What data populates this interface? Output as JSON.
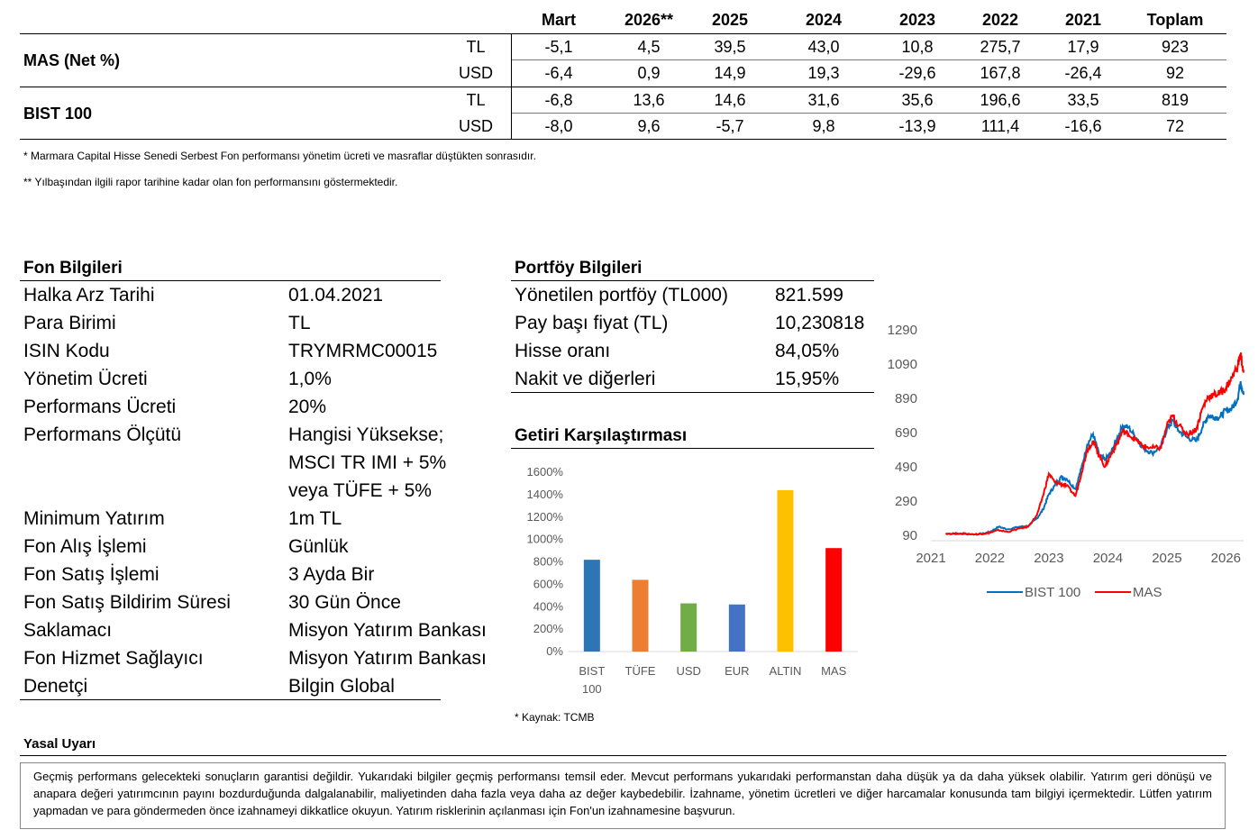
{
  "performance": {
    "columns": [
      "Mart",
      "2026**",
      "2025",
      "2024",
      "2023",
      "2022",
      "2021",
      "Toplam"
    ],
    "groups": [
      {
        "label": "MAS (Net %)",
        "rows": [
          {
            "currency": "TL",
            "values": [
              "-5,1",
              "4,5",
              "39,5",
              "43,0",
              "10,8",
              "275,7",
              "17,9",
              "923"
            ]
          },
          {
            "currency": "USD",
            "values": [
              "-6,4",
              "0,9",
              "14,9",
              "19,3",
              "-29,6",
              "167,8",
              "-26,4",
              "92"
            ]
          }
        ]
      },
      {
        "label": "BIST 100",
        "rows": [
          {
            "currency": "TL",
            "values": [
              "-6,8",
              "13,6",
              "14,6",
              "31,6",
              "35,6",
              "196,6",
              "33,5",
              "819"
            ]
          },
          {
            "currency": "USD",
            "values": [
              "-8,0",
              "9,6",
              "-5,7",
              "9,8",
              "-13,9",
              "111,4",
              "-16,6",
              "72"
            ]
          }
        ]
      }
    ]
  },
  "notes": {
    "note1": "* Marmara Capital Hisse Senedi Serbest Fon performansı yönetim ücreti ve masraflar düştükten sonrasıdır.",
    "note2": "** Yılbaşından ilgili rapor tarihine kadar olan fon performansını göstermektedir."
  },
  "fund_info": {
    "title": "Fon Bilgileri",
    "rows": [
      {
        "label": "Halka Arz Tarihi",
        "value": "01.04.2021"
      },
      {
        "label": "Para Birimi",
        "value": "TL"
      },
      {
        "label": "ISIN Kodu",
        "value": "TRYMRMC00015"
      },
      {
        "label": "Yönetim Ücreti",
        "value": "1,0%"
      },
      {
        "label": "Performans Ücreti",
        "value": "20%"
      },
      {
        "label": "Performans Ölçütü",
        "value": "Hangisi Yüksekse;"
      },
      {
        "label": "",
        "value": "MSCI TR IMI + 5%"
      },
      {
        "label": "",
        "value": "veya TÜFE + 5%"
      },
      {
        "label": "Minimum Yatırım",
        "value": "1m TL"
      },
      {
        "label": "Fon Alış İşlemi",
        "value": "Günlük"
      },
      {
        "label": "Fon Satış İşlemi",
        "value": "3 Ayda Bir"
      },
      {
        "label": "Fon Satış Bildirim Süresi",
        "value": "30 Gün Önce"
      },
      {
        "label": "Saklamacı",
        "value": "Misyon Yatırım Bankası"
      },
      {
        "label": "Fon Hizmet Sağlayıcı",
        "value": "Misyon Yatırım Bankası"
      },
      {
        "label": "Denetçi",
        "value": "Bilgin Global"
      }
    ]
  },
  "portfolio_info": {
    "title": "Portföy Bilgileri",
    "rows": [
      {
        "label": "Yönetilen portföy (TL000)",
        "value": "821.599"
      },
      {
        "label": "Pay başı fiyat (TL)",
        "value": "10,230818"
      },
      {
        "label": "Hisse oranı",
        "value": "84,05%"
      },
      {
        "label": "Nakit ve diğerleri",
        "value": "15,95%"
      }
    ]
  },
  "returns_title": "Getiri Karşılaştırması",
  "source_note": "* Kaynak: TCMB",
  "legal": {
    "title": "Yasal Uyarı",
    "text": "Geçmiş performans gelecekteki sonuçların garantisi değildir. Yukarıdaki bilgiler geçmiş performansı temsil eder. Mevcut performans yukarıdaki performanstan daha düşük ya da daha yüksek olabilir. Yatırım geri dönüşü ve anapara değeri yatırımcının payını bozdurduğunda dalgalanabilir, maliyetinden daha fazla veya daha az değer kaybedebilir. İzahname, yönetim ücretleri ve diğer harcamalar konusunda tam bilgiyi içermektedir. Lütfen yatırım yapmadan ve para göndermeden önce izahnameyi dikkatlice okuyun.  Yatırım risklerinin açılanması için Fon'un izahnamesine başvurun."
  },
  "chart_data": [
    {
      "type": "bar",
      "categories": [
        "BIST 100",
        "TÜFE",
        "USD",
        "EUR",
        "ALTIN",
        "MAS"
      ],
      "values": [
        819,
        640,
        430,
        420,
        1440,
        923
      ],
      "colors": [
        "#2E75B6",
        "#ED7D31",
        "#70AD47",
        "#4472C4",
        "#FFC000",
        "#FF0000"
      ],
      "ylim": [
        0,
        1600
      ],
      "yticks": [
        "0%",
        "200%",
        "400%",
        "600%",
        "800%",
        "1000%",
        "1200%",
        "1400%",
        "1600%"
      ],
      "grid": false
    },
    {
      "type": "line",
      "x_ticks": [
        "2021",
        "2022",
        "2023",
        "2024",
        "2025",
        "2026"
      ],
      "y_ticks": [
        "90",
        "290",
        "490",
        "690",
        "890",
        "1090",
        "1290"
      ],
      "ylim": [
        90,
        1290
      ],
      "xlim": [
        2021.0,
        2026.3
      ],
      "legend_position": "bottom",
      "series": [
        {
          "name": "BIST 100",
          "color": "#0070C0",
          "points": [
            [
              2021.25,
              100
            ],
            [
              2021.5,
              98
            ],
            [
              2021.75,
              96
            ],
            [
              2021.9,
              100
            ],
            [
              2022.0,
              110
            ],
            [
              2022.15,
              140
            ],
            [
              2022.3,
              125
            ],
            [
              2022.5,
              140
            ],
            [
              2022.65,
              145
            ],
            [
              2022.8,
              190
            ],
            [
              2022.9,
              240
            ],
            [
              2023.0,
              330
            ],
            [
              2023.1,
              380
            ],
            [
              2023.2,
              430
            ],
            [
              2023.3,
              420
            ],
            [
              2023.45,
              360
            ],
            [
              2023.55,
              480
            ],
            [
              2023.65,
              620
            ],
            [
              2023.75,
              680
            ],
            [
              2023.85,
              560
            ],
            [
              2023.95,
              530
            ],
            [
              2024.05,
              570
            ],
            [
              2024.15,
              650
            ],
            [
              2024.25,
              730
            ],
            [
              2024.35,
              720
            ],
            [
              2024.5,
              650
            ],
            [
              2024.6,
              600
            ],
            [
              2024.75,
              570
            ],
            [
              2024.9,
              610
            ],
            [
              2025.0,
              710
            ],
            [
              2025.1,
              760
            ],
            [
              2025.2,
              700
            ],
            [
              2025.35,
              660
            ],
            [
              2025.5,
              640
            ],
            [
              2025.6,
              720
            ],
            [
              2025.7,
              790
            ],
            [
              2025.8,
              780
            ],
            [
              2025.9,
              780
            ],
            [
              2026.0,
              820
            ],
            [
              2026.1,
              830
            ],
            [
              2026.2,
              890
            ],
            [
              2026.25,
              990
            ],
            [
              2026.3,
              910
            ]
          ]
        },
        {
          "name": "MAS",
          "color": "#FF0000",
          "points": [
            [
              2021.25,
              100
            ],
            [
              2021.5,
              101
            ],
            [
              2021.75,
              96
            ],
            [
              2021.9,
              100
            ],
            [
              2022.0,
              105
            ],
            [
              2022.15,
              120
            ],
            [
              2022.3,
              110
            ],
            [
              2022.5,
              130
            ],
            [
              2022.65,
              140
            ],
            [
              2022.8,
              210
            ],
            [
              2022.9,
              320
            ],
            [
              2023.0,
              450
            ],
            [
              2023.1,
              400
            ],
            [
              2023.2,
              390
            ],
            [
              2023.3,
              380
            ],
            [
              2023.45,
              320
            ],
            [
              2023.55,
              450
            ],
            [
              2023.65,
              590
            ],
            [
              2023.75,
              640
            ],
            [
              2023.85,
              560
            ],
            [
              2023.95,
              490
            ],
            [
              2024.05,
              560
            ],
            [
              2024.15,
              620
            ],
            [
              2024.25,
              700
            ],
            [
              2024.35,
              680
            ],
            [
              2024.5,
              640
            ],
            [
              2024.6,
              610
            ],
            [
              2024.75,
              600
            ],
            [
              2024.9,
              600
            ],
            [
              2025.0,
              730
            ],
            [
              2025.1,
              790
            ],
            [
              2025.2,
              730
            ],
            [
              2025.35,
              680
            ],
            [
              2025.5,
              710
            ],
            [
              2025.6,
              830
            ],
            [
              2025.7,
              900
            ],
            [
              2025.8,
              910
            ],
            [
              2025.9,
              920
            ],
            [
              2026.0,
              950
            ],
            [
              2026.1,
              1010
            ],
            [
              2026.2,
              1080
            ],
            [
              2026.25,
              1150
            ],
            [
              2026.3,
              1040
            ]
          ]
        }
      ]
    }
  ]
}
